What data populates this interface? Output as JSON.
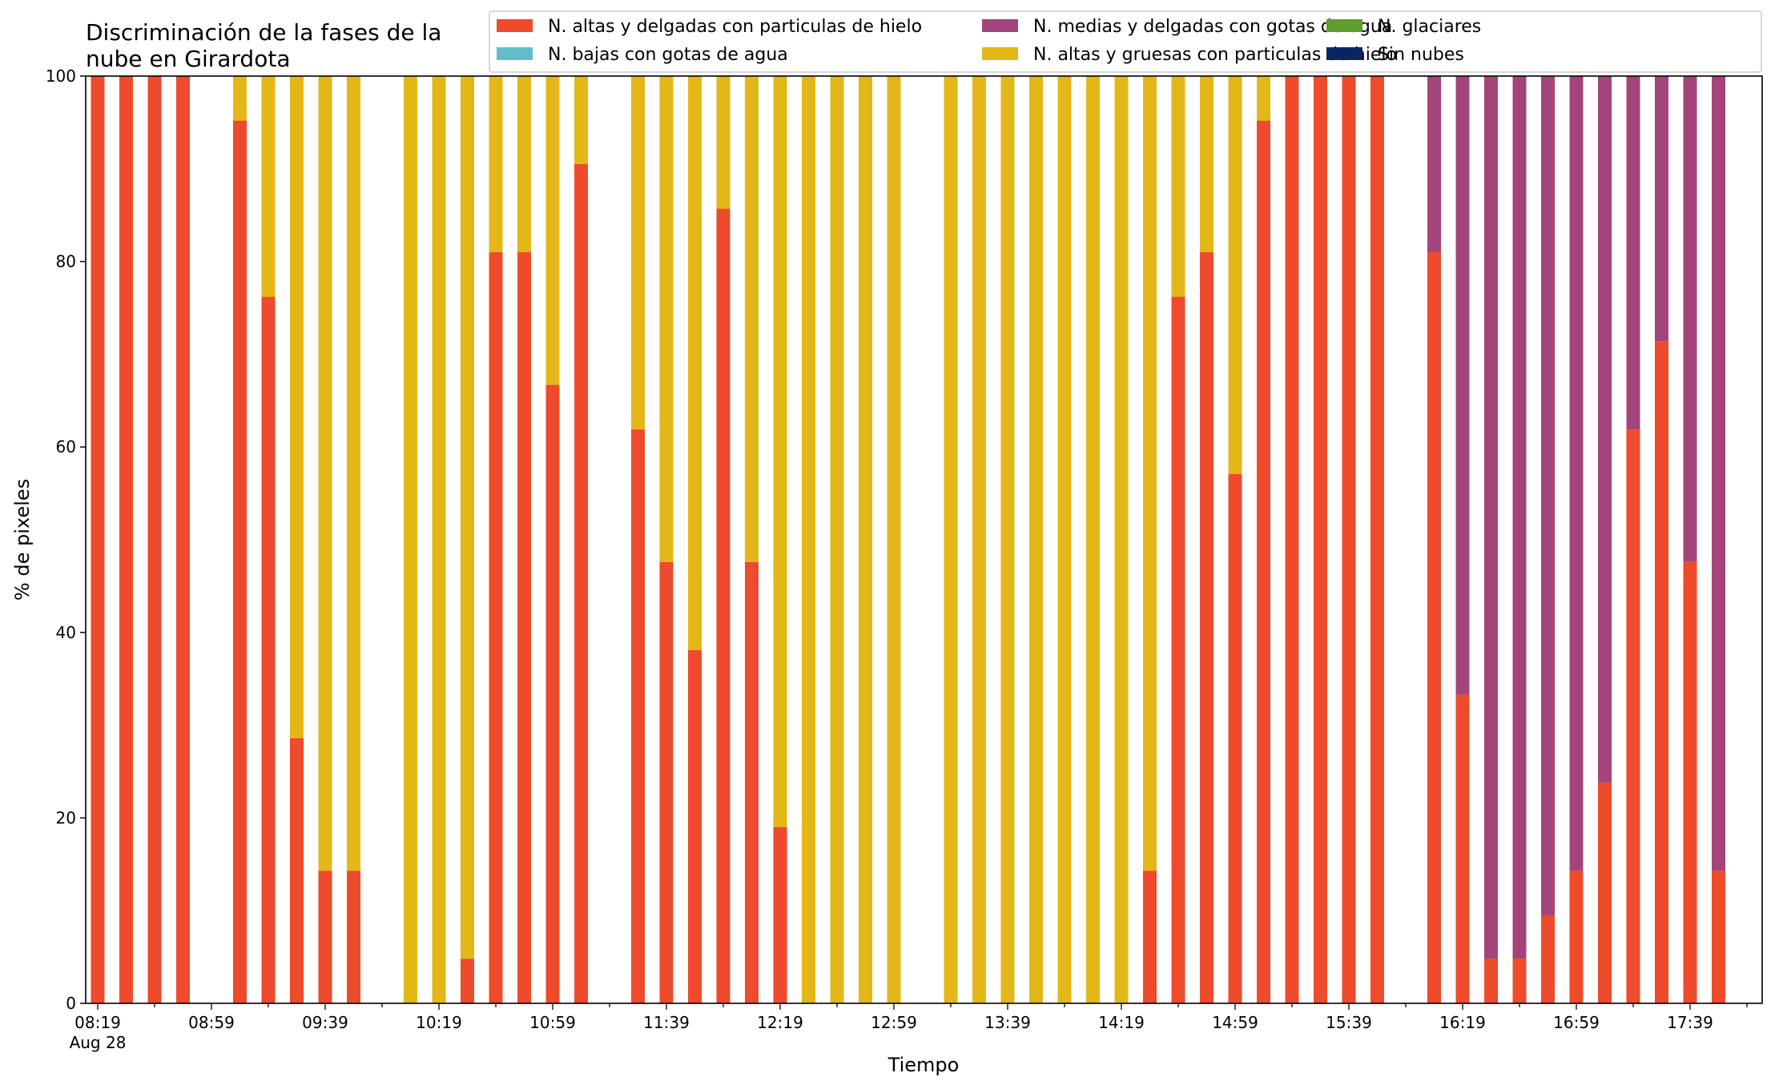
{
  "chart_data": {
    "type": "bar",
    "stacked": true,
    "title_lines": [
      "Discriminación de la fases de la",
      "nube en Girardota"
    ],
    "xlabel": "Tiempo",
    "ylabel": "% de pixeles",
    "ylim": [
      0,
      100
    ],
    "yticks": [
      0,
      20,
      40,
      60,
      80,
      100
    ],
    "xtick_labels": [
      "08:19",
      "08:59",
      "09:39",
      "10:19",
      "10:59",
      "11:39",
      "12:19",
      "12:59",
      "13:39",
      "14:19",
      "14:59",
      "15:39",
      "16:19",
      "16:59",
      "17:39"
    ],
    "xtick_sublabel": "Aug 28",
    "grid": false,
    "legend_position": "top-right",
    "x": [
      "08:19",
      "08:29",
      "08:39",
      "08:49",
      "08:59",
      "09:09",
      "09:19",
      "09:29",
      "09:39",
      "09:49",
      "09:59",
      "10:09",
      "10:19",
      "10:29",
      "10:39",
      "10:49",
      "10:59",
      "11:09",
      "11:19",
      "11:29",
      "11:39",
      "11:49",
      "11:59",
      "12:09",
      "12:19",
      "12:29",
      "12:39",
      "12:49",
      "12:59",
      "13:09",
      "13:19",
      "13:29",
      "13:39",
      "13:49",
      "13:59",
      "14:09",
      "14:19",
      "14:29",
      "14:39",
      "14:49",
      "14:59",
      "15:09",
      "15:19",
      "15:29",
      "15:39",
      "15:49",
      "15:59",
      "16:09",
      "16:19",
      "16:29",
      "16:39",
      "16:49",
      "16:59",
      "17:09",
      "17:19",
      "17:29",
      "17:39",
      "17:49"
    ],
    "series": [
      {
        "name": "N. altas y delgadas con particulas de hielo",
        "color": "#EE4A2C",
        "values": [
          100,
          100,
          100,
          100,
          0,
          95.2,
          76.2,
          28.6,
          14.3,
          14.3,
          0,
          0,
          0,
          4.8,
          81,
          81,
          66.7,
          90.5,
          0,
          61.9,
          47.6,
          38.1,
          85.7,
          47.6,
          19,
          0,
          0,
          0,
          0,
          0,
          0,
          0,
          0,
          0,
          0,
          0,
          0,
          14.3,
          76.2,
          81,
          57.1,
          95.2,
          100,
          100,
          100,
          100,
          0,
          81,
          33.3,
          4.8,
          4.8,
          9.5,
          14.3,
          23.8,
          61.9,
          71.4,
          47.6,
          14.3
        ]
      },
      {
        "name": "N. altas y gruesas con particulas de hielo",
        "color": "#E3B717",
        "values": [
          0,
          0,
          0,
          0,
          0,
          4.8,
          23.8,
          71.4,
          85.7,
          85.7,
          0,
          100,
          100,
          95.2,
          19,
          19,
          33.3,
          9.5,
          0,
          38.1,
          52.4,
          61.9,
          14.3,
          52.4,
          81,
          100,
          100,
          100,
          100,
          0,
          100,
          100,
          100,
          100,
          100,
          100,
          100,
          85.7,
          23.8,
          19,
          42.9,
          4.8,
          0,
          0,
          0,
          0,
          0,
          0,
          0,
          0,
          0,
          0,
          0,
          0,
          0,
          0,
          0,
          0
        ]
      },
      {
        "name": "N. bajas con gotas de agua",
        "color": "#62BDC7",
        "values": [
          0,
          0,
          0,
          0,
          0,
          0,
          0,
          0,
          0,
          0,
          0,
          0,
          0,
          0,
          0,
          0,
          0,
          0,
          0,
          0,
          0,
          0,
          0,
          0,
          0,
          0,
          0,
          0,
          0,
          0,
          0,
          0,
          0,
          0,
          0,
          0,
          0,
          0,
          0,
          0,
          0,
          0,
          0,
          0,
          0,
          0,
          0,
          0,
          0,
          0,
          0,
          0,
          0,
          0,
          0,
          0,
          0,
          0
        ]
      },
      {
        "name": "N. glaciares",
        "color": "#5F9E2B",
        "values": [
          0,
          0,
          0,
          0,
          0,
          0,
          0,
          0,
          0,
          0,
          0,
          0,
          0,
          0,
          0,
          0,
          0,
          0,
          0,
          0,
          0,
          0,
          0,
          0,
          0,
          0,
          0,
          0,
          0,
          0,
          0,
          0,
          0,
          0,
          0,
          0,
          0,
          0,
          0,
          0,
          0,
          0,
          0,
          0,
          0,
          0,
          0,
          0,
          0,
          0,
          0,
          0,
          0,
          0,
          0,
          0,
          0,
          0
        ]
      },
      {
        "name": "N. medias y delgadas con gotas de agua",
        "color": "#A3457A",
        "values": [
          0,
          0,
          0,
          0,
          0,
          0,
          0,
          0,
          0,
          0,
          0,
          0,
          0,
          0,
          0,
          0,
          0,
          0,
          0,
          0,
          0,
          0,
          0,
          0,
          0,
          0,
          0,
          0,
          0,
          0,
          0,
          0,
          0,
          0,
          0,
          0,
          0,
          0,
          0,
          0,
          0,
          0,
          0,
          0,
          0,
          0,
          0,
          19,
          66.7,
          95.2,
          95.2,
          90.5,
          85.7,
          76.2,
          38.1,
          28.6,
          52.4,
          85.7
        ]
      },
      {
        "name": "Sin nubes",
        "color": "#0B2560",
        "values": [
          0,
          0,
          0,
          0,
          0,
          0,
          0,
          0,
          0,
          0,
          0,
          0,
          0,
          0,
          0,
          0,
          0,
          0,
          0,
          0,
          0,
          0,
          0,
          0,
          0,
          0,
          0,
          0,
          0,
          0,
          0,
          0,
          0,
          0,
          0,
          0,
          0,
          0,
          0,
          0,
          0,
          0,
          0,
          0,
          0,
          0,
          0,
          0,
          0,
          0,
          0,
          0,
          0,
          0,
          0,
          0,
          0,
          0
        ]
      }
    ],
    "legend_order": [
      0,
      2,
      4,
      1,
      3,
      5
    ]
  }
}
